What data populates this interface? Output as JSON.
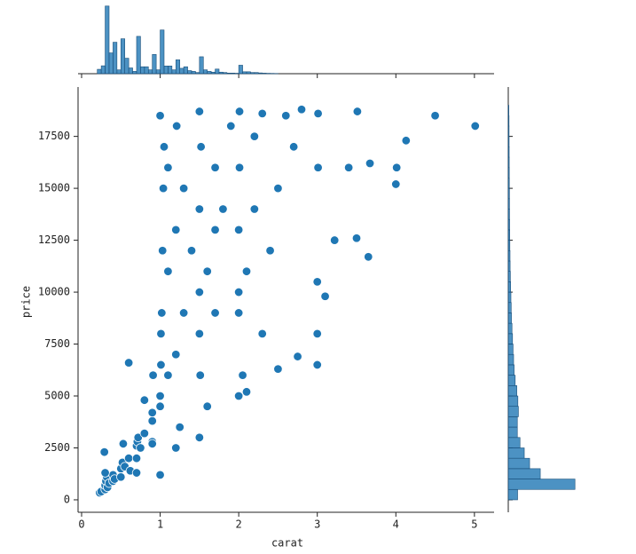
{
  "chart_data": [
    {
      "type": "scatter",
      "xlabel": "carat",
      "ylabel": "price",
      "color": "#1f77b4",
      "edgecolor": "#ffffff",
      "x": [
        0.23,
        0.25,
        0.3,
        0.3,
        0.31,
        0.32,
        0.33,
        0.35,
        0.4,
        0.4,
        0.42,
        0.5,
        0.5,
        0.52,
        0.55,
        0.6,
        0.62,
        0.7,
        0.7,
        0.71,
        0.72,
        0.75,
        0.8,
        0.9,
        0.9,
        0.9,
        0.91,
        1.0,
        1.0,
        1.01,
        1.01,
        1.02,
        1.03,
        1.04,
        1.05,
        1.0,
        1.1,
        1.1,
        1.1,
        1.2,
        1.2,
        1.21,
        1.3,
        1.3,
        1.4,
        1.5,
        1.5,
        1.5,
        1.5,
        1.51,
        1.52,
        1.6,
        1.7,
        1.7,
        1.7,
        1.8,
        1.9,
        2.0,
        2.0,
        2.0,
        2.01,
        2.01,
        2.05,
        2.1,
        2.2,
        2.2,
        2.3,
        2.3,
        2.4,
        2.5,
        2.5,
        2.6,
        2.7,
        2.75,
        2.8,
        3.0,
        3.0,
        3.0,
        3.01,
        3.01,
        3.1,
        3.22,
        3.4,
        3.5,
        3.51,
        3.65,
        3.67,
        4.0,
        4.01,
        4.13,
        4.5,
        5.01,
        0.29,
        0.53,
        0.9,
        0.3,
        0.7,
        1.2,
        1.25,
        1.5,
        1.6,
        0.6,
        0.8,
        2.0,
        2.1,
        1.0
      ],
      "values": [
        340,
        400,
        500,
        700,
        900,
        1100,
        600,
        800,
        900,
        1200,
        1000,
        1500,
        1100,
        1800,
        1600,
        2000,
        1400,
        2600,
        2000,
        2800,
        3000,
        2500,
        3200,
        3800,
        4200,
        2800,
        6000,
        4500,
        5000,
        6500,
        8000,
        9000,
        12000,
        15000,
        17000,
        18500,
        16000,
        11000,
        6000,
        7000,
        13000,
        18000,
        9000,
        15000,
        12000,
        8000,
        10000,
        14000,
        18700,
        6000,
        17000,
        11000,
        13000,
        16000,
        9000,
        14000,
        18000,
        5000,
        9000,
        13000,
        16000,
        18700,
        6000,
        11000,
        14000,
        17500,
        8000,
        18600,
        12000,
        15000,
        6300,
        18500,
        17000,
        6900,
        18800,
        6500,
        8000,
        10500,
        16000,
        18600,
        9800,
        12500,
        16000,
        12600,
        18700,
        11700,
        16200,
        15200,
        16000,
        17300,
        18500,
        18000,
        2300,
        2700,
        2700,
        1300,
        1300,
        2500,
        3500,
        3000,
        4500,
        6600,
        4800,
        10000,
        5200,
        1200
      ],
      "xlim": [
        -0.045,
        5.25
      ],
      "ylim": [
        -600,
        19750
      ],
      "xticks": [
        0,
        1,
        2,
        3,
        4,
        5
      ],
      "yticks": [
        0,
        2500,
        5000,
        7500,
        10000,
        12500,
        15000,
        17500
      ]
    },
    {
      "type": "histogram",
      "orientation": "vertical",
      "color": "#1f77b4",
      "bins": [
        0.2,
        0.25,
        0.3,
        0.35,
        0.4,
        0.45,
        0.5,
        0.55,
        0.6,
        0.65,
        0.7,
        0.75,
        0.8,
        0.85,
        0.9,
        0.95,
        1.0,
        1.05,
        1.1,
        1.15,
        1.2,
        1.25,
        1.3,
        1.35,
        1.4,
        1.45,
        1.5,
        1.55,
        1.6,
        1.65,
        1.7,
        1.75,
        1.8,
        1.85,
        1.9,
        1.95,
        2.0,
        2.05,
        2.1,
        2.15,
        2.2,
        2.25,
        2.3,
        2.35,
        2.4,
        2.45,
        2.5
      ],
      "values": [
        570,
        1026,
        8792,
        2701,
        4087,
        495,
        4536,
        2010,
        749,
        300,
        4853,
        900,
        900,
        500,
        2500,
        500,
        5681,
        1000,
        1000,
        500,
        1800,
        700,
        900,
        400,
        300,
        150,
        2200,
        500,
        300,
        200,
        600,
        200,
        150,
        80,
        80,
        60,
        1100,
        250,
        250,
        150,
        150,
        100,
        70,
        50,
        40,
        30
      ],
      "ylim": [
        0,
        9000
      ]
    },
    {
      "type": "histogram",
      "orientation": "horizontal",
      "color": "#1f77b4",
      "bins": [
        0,
        500,
        1000,
        1500,
        2000,
        2500,
        3000,
        3500,
        4000,
        4500,
        5000,
        5500,
        6000,
        6500,
        7000,
        7500,
        8000,
        8500,
        9000,
        9500,
        10000,
        10500,
        11000,
        11500,
        12000,
        12500,
        13000,
        13500,
        14000,
        14500,
        15000,
        15500,
        16000,
        16500,
        17000,
        17500,
        18000,
        18500,
        19000
      ],
      "values": [
        1749,
        12500,
        6000,
        4000,
        3000,
        2200,
        1700,
        1700,
        1900,
        1800,
        1600,
        1300,
        1100,
        1000,
        900,
        800,
        700,
        600,
        550,
        500,
        450,
        400,
        350,
        330,
        300,
        280,
        260,
        240,
        230,
        220,
        200,
        190,
        180,
        170,
        160,
        150,
        140,
        110
      ],
      "xlim": [
        0,
        12800
      ]
    }
  ]
}
